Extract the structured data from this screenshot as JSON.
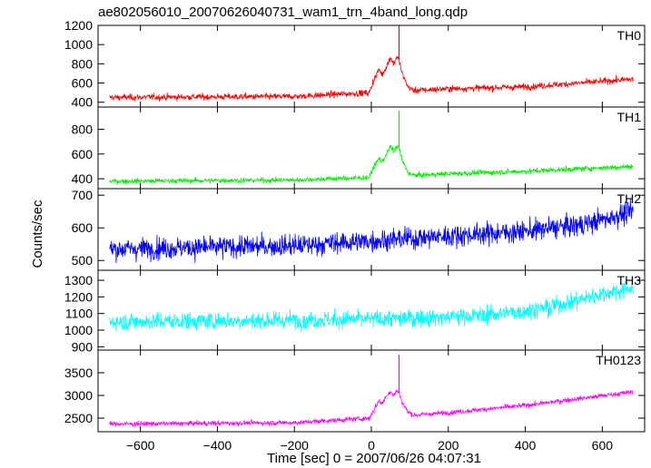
{
  "chart_data": {
    "type": "line",
    "title": "ae802056010_20070626040731_wam1_trn_4band_long.qdp",
    "xlabel": "Time [sec] 0 = 2007/06/26 04:07:31",
    "ylabel": "Counts/sec",
    "xlim": [
      -710,
      710
    ],
    "x_ticks": [
      -600,
      -400,
      -200,
      0,
      200,
      400,
      600
    ],
    "x_tick_labels": [
      "−600",
      "−400",
      "−200",
      "0",
      "200",
      "400",
      "600"
    ],
    "x_range_of_data": [
      -680,
      680
    ],
    "panels": [
      {
        "name": "TH0",
        "color": "#ff0000",
        "ylim": [
          350,
          1200
        ],
        "y_ticks": [
          400,
          600,
          800,
          1000,
          1200
        ],
        "baseline": [
          [
            -680,
            450
          ],
          [
            -200,
            460
          ],
          [
            0,
            500
          ],
          [
            200,
            540
          ],
          [
            400,
            560
          ],
          [
            680,
            640
          ]
        ],
        "noise": 28,
        "flare": [
          [
            -5,
            0
          ],
          [
            5,
            120
          ],
          [
            20,
            240
          ],
          [
            28,
            180
          ],
          [
            40,
            270
          ],
          [
            50,
            360
          ],
          [
            58,
            280
          ],
          [
            65,
            360
          ],
          [
            72,
            330
          ],
          [
            80,
            180
          ],
          [
            95,
            40
          ],
          [
            110,
            0
          ]
        ],
        "spike": {
          "x": 72,
          "y": 1200
        }
      },
      {
        "name": "TH1",
        "color": "#00ee00",
        "ylim": [
          320,
          980
        ],
        "y_ticks": [
          400,
          600,
          800
        ],
        "baseline": [
          [
            -680,
            380
          ],
          [
            -200,
            390
          ],
          [
            0,
            410
          ],
          [
            200,
            440
          ],
          [
            400,
            460
          ],
          [
            680,
            500
          ]
        ],
        "noise": 18,
        "flare": [
          [
            -5,
            0
          ],
          [
            5,
            80
          ],
          [
            20,
            150
          ],
          [
            28,
            120
          ],
          [
            40,
            190
          ],
          [
            50,
            240
          ],
          [
            58,
            200
          ],
          [
            65,
            240
          ],
          [
            72,
            230
          ],
          [
            80,
            120
          ],
          [
            95,
            30
          ],
          [
            110,
            0
          ]
        ],
        "spike": {
          "x": 72,
          "y": 950
        }
      },
      {
        "name": "TH2",
        "color": "#0000ff",
        "ylim": [
          470,
          720
        ],
        "y_ticks": [
          500,
          600,
          700
        ],
        "baseline": [
          [
            -680,
            535
          ],
          [
            -200,
            545
          ],
          [
            0,
            560
          ],
          [
            200,
            575
          ],
          [
            400,
            590
          ],
          [
            550,
            610
          ],
          [
            680,
            650
          ]
        ],
        "noise": 28,
        "flare": [],
        "spike": null
      },
      {
        "name": "TH3",
        "color": "#00ffff",
        "ylim": [
          880,
          1360
        ],
        "y_ticks": [
          900,
          1000,
          1100,
          1200,
          1300
        ],
        "baseline": [
          [
            -680,
            1050
          ],
          [
            -200,
            1060
          ],
          [
            100,
            1070
          ],
          [
            300,
            1090
          ],
          [
            450,
            1130
          ],
          [
            550,
            1190
          ],
          [
            680,
            1260
          ]
        ],
        "noise": 45,
        "flare": [],
        "spike": null
      },
      {
        "name": "TH0123",
        "color": "#ff00ff",
        "ylim": [
          2200,
          4000
        ],
        "y_ticks": [
          2500,
          3000,
          3500
        ],
        "baseline": [
          [
            -680,
            2370
          ],
          [
            -200,
            2400
          ],
          [
            0,
            2500
          ],
          [
            200,
            2620
          ],
          [
            400,
            2780
          ],
          [
            680,
            3080
          ]
        ],
        "noise": 45,
        "flare": [
          [
            -5,
            0
          ],
          [
            5,
            150
          ],
          [
            20,
            380
          ],
          [
            28,
            300
          ],
          [
            40,
            480
          ],
          [
            50,
            560
          ],
          [
            58,
            450
          ],
          [
            65,
            560
          ],
          [
            72,
            520
          ],
          [
            80,
            300
          ],
          [
            95,
            80
          ],
          [
            110,
            0
          ]
        ],
        "spike": {
          "x": 72,
          "y": 3900
        }
      }
    ],
    "grid": false,
    "legend": "none"
  }
}
